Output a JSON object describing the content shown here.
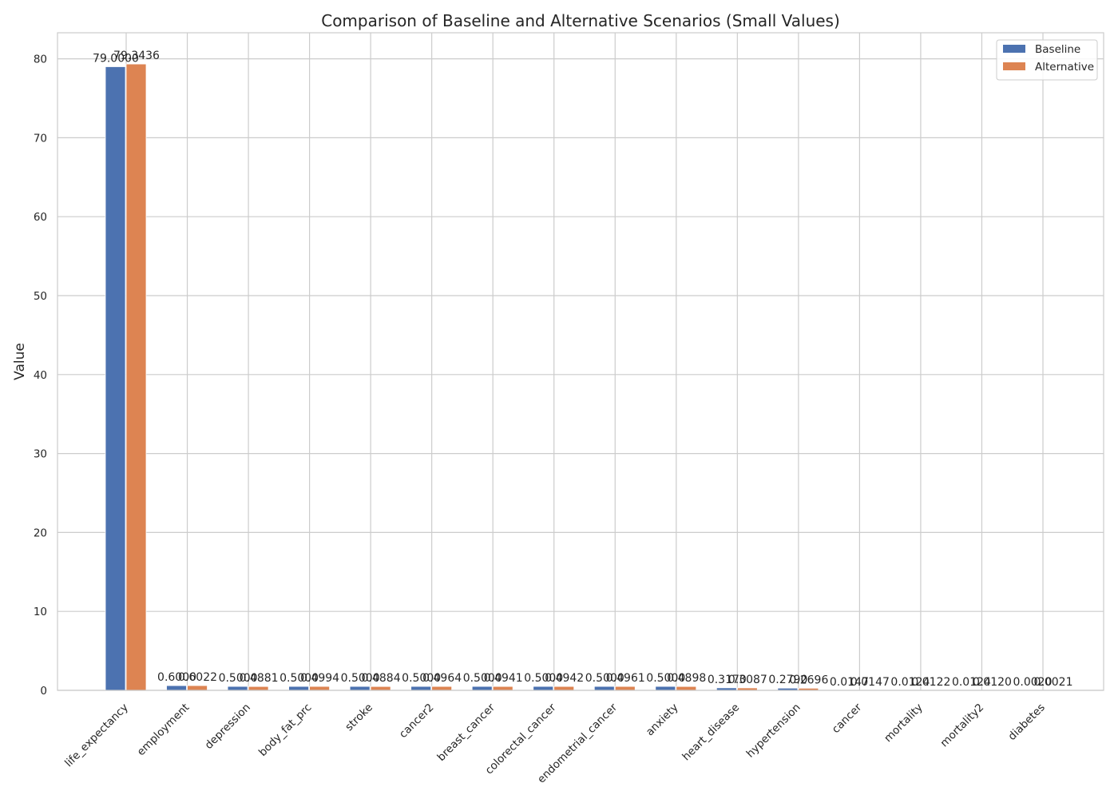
{
  "chart_data": {
    "type": "bar",
    "title": "Comparison of Baseline and Alternative Scenarios (Small Values)",
    "xlabel": "",
    "ylabel": "Value",
    "ylim": [
      0,
      83.3
    ],
    "yticks": [
      0,
      10,
      20,
      30,
      40,
      50,
      60,
      70,
      80
    ],
    "grid": true,
    "legend_position": "top-right",
    "categories": [
      "life_expectancy",
      "employment",
      "depression",
      "body_fat_prc",
      "stroke",
      "cancer2",
      "breast_cancer",
      "colorectal_cancer",
      "endometrial_cancer",
      "anxiety",
      "heart_disease",
      "hypertension",
      "cancer",
      "mortality",
      "mortality2",
      "diabetes"
    ],
    "series": [
      {
        "name": "Baseline",
        "color": "#4c72b0",
        "values": [
          79.0,
          0.6,
          0.5,
          0.5,
          0.5,
          0.5,
          0.5,
          0.5,
          0.5,
          0.5,
          0.317,
          0.279,
          0.0147,
          0.0124,
          0.0124,
          0.002
        ],
        "labels": [
          "79.0000",
          "0.6000",
          "0.5000",
          "0.5000",
          "0.5000",
          "0.5000",
          "0.5000",
          "0.5000",
          "0.5000",
          "0.5000",
          "0.3170",
          "0.2790",
          "0.0147",
          "0.0124",
          "0.0124",
          "0.0020"
        ]
      },
      {
        "name": "Alternative",
        "color": "#dd8452",
        "values": [
          79.3436,
          0.6022,
          0.4881,
          0.4994,
          0.4884,
          0.4964,
          0.4941,
          0.4942,
          0.4961,
          0.4898,
          0.3087,
          0.2696,
          0.0147,
          0.0122,
          0.012,
          0.0021
        ],
        "labels": [
          "79.3436",
          "0.6022",
          "0.4881",
          "0.4994",
          "0.4884",
          "0.4964",
          "0.4941",
          "0.4942",
          "0.4961",
          "0.4898",
          "0.3087",
          "0.2696",
          "0.0147",
          "0.0122",
          "0.0120",
          "0.0021"
        ]
      }
    ]
  }
}
